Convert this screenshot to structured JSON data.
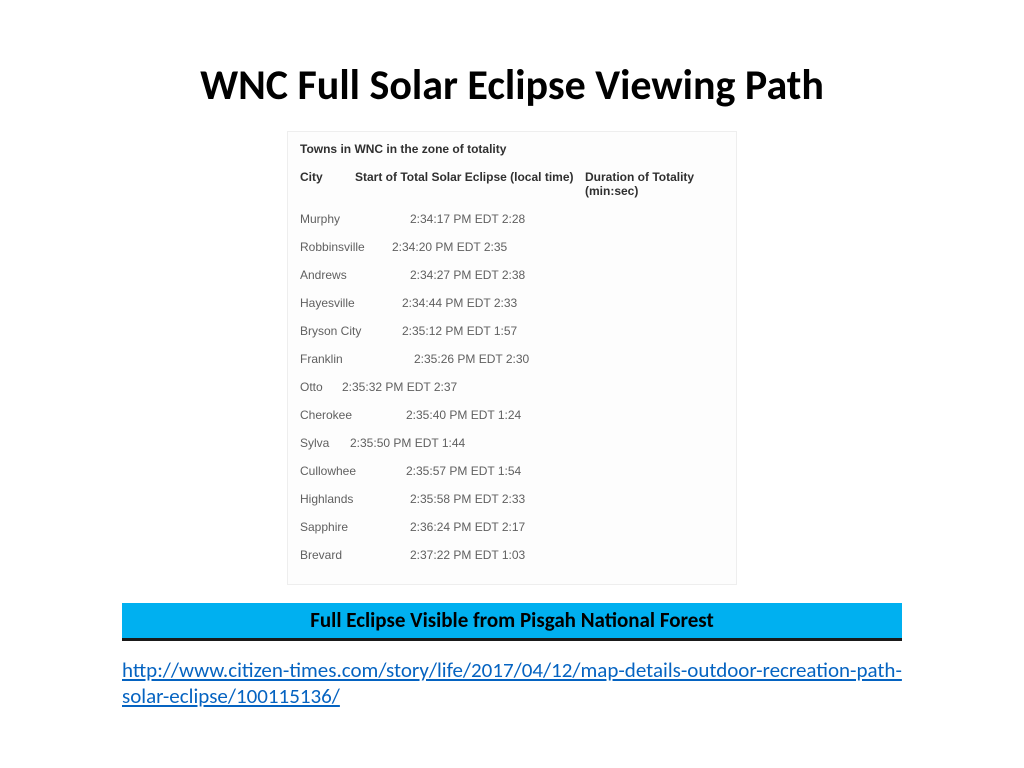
{
  "title": "WNC Full Solar Eclipse Viewing Path",
  "box": {
    "heading": "Towns in WNC in the zone of totality",
    "columns": {
      "c1": "City",
      "c2": "Start of Total Solar Eclipse (local time)",
      "c3": "Duration of Totality (min:sec)"
    },
    "rows": [
      {
        "city": "Murphy",
        "cityWidth": 110,
        "time": "2:34:17 PM EDT",
        "dur": "2:28"
      },
      {
        "city": "Robbinsville",
        "cityWidth": 92,
        "time": "2:34:20 PM EDT",
        "dur": "2:35"
      },
      {
        "city": "Andrews",
        "cityWidth": 110,
        "time": "2:34:27 PM EDT",
        "dur": "2:38"
      },
      {
        "city": "Hayesville",
        "cityWidth": 102,
        "time": "2:34:44 PM EDT",
        "dur": "2:33"
      },
      {
        "city": "Bryson City",
        "cityWidth": 102,
        "time": "2:35:12 PM EDT",
        "dur": "1:57"
      },
      {
        "city": "Franklin",
        "cityWidth": 114,
        "time": "2:35:26 PM EDT",
        "dur": "2:30"
      },
      {
        "city": "Otto",
        "cityWidth": 42,
        "time": "2:35:32 PM EDT",
        "dur": "2:37"
      },
      {
        "city": "Cherokee",
        "cityWidth": 106,
        "time": "2:35:40 PM EDT",
        "dur": "1:24"
      },
      {
        "city": "Sylva",
        "cityWidth": 50,
        "time": "2:35:50 PM EDT",
        "dur": "1:44"
      },
      {
        "city": "Cullowhee",
        "cityWidth": 106,
        "time": "2:35:57 PM EDT",
        "dur": "1:54"
      },
      {
        "city": "Highlands",
        "cityWidth": 110,
        "time": "2:35:58 PM EDT",
        "dur": "2:33"
      },
      {
        "city": "Sapphire",
        "cityWidth": 110,
        "time": "2:36:24 PM EDT",
        "dur": "2:17"
      },
      {
        "city": "Brevard",
        "cityWidth": 110,
        "time": "2:37:22 PM EDT",
        "dur": "1:03"
      }
    ]
  },
  "banner": "Full Eclipse Visible from Pisgah National Forest",
  "link": "http://www.citizen-times.com/story/life/2017/04/12/map-details-outdoor-recreation-path-solar-eclipse/100115136/"
}
